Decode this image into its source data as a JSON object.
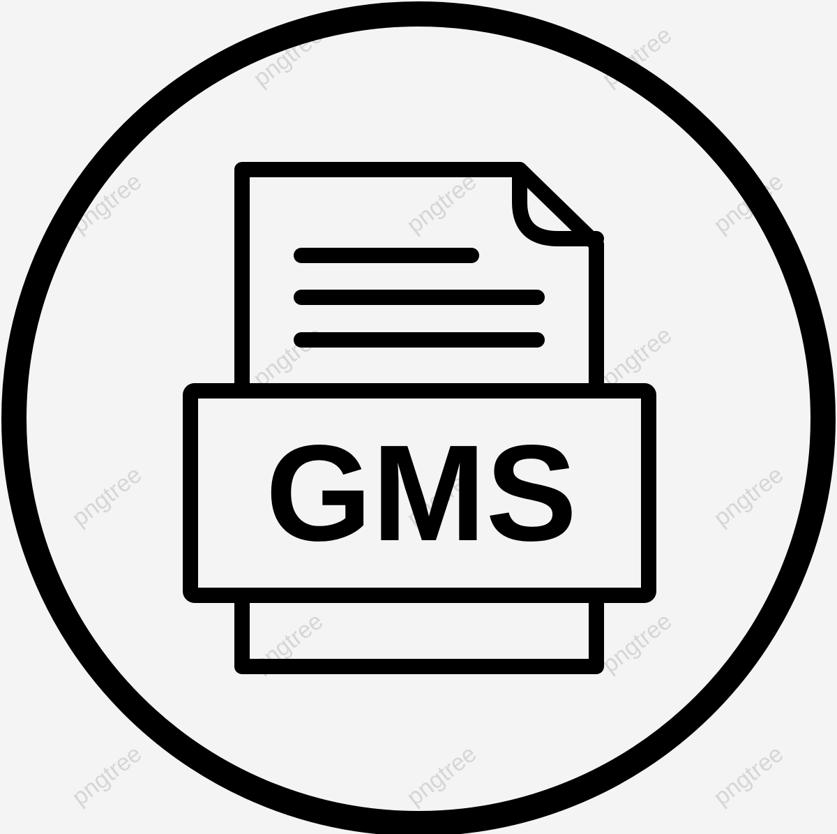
{
  "icon": {
    "name": "file-document-icon",
    "label": "GMS",
    "stroke_color": "#000000",
    "background_color": "#f4f4f4"
  },
  "watermark": {
    "text": "pngtree",
    "color": "#d6d6d6"
  }
}
